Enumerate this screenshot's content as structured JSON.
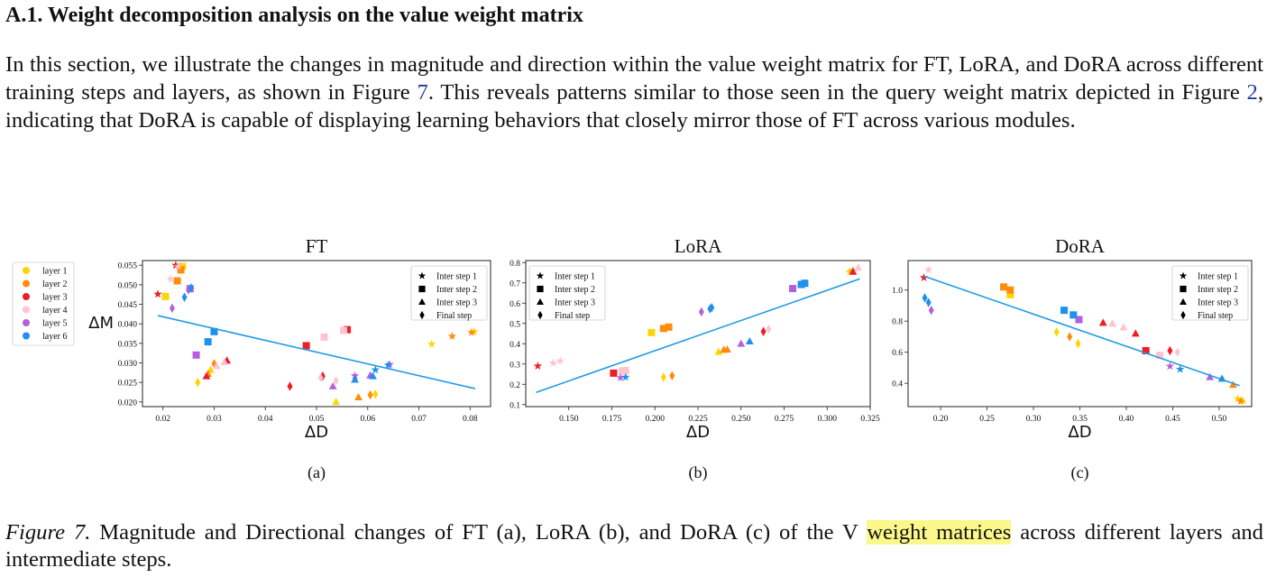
{
  "heading": "A.1. Weight decomposition analysis on the value weight matrix",
  "paragraph": {
    "part1": "In this section, we illustrate the changes in magnitude and direction within the value weight matrix for FT, LoRA, and DoRA across different training steps and layers, as shown in Figure ",
    "ref1": "7",
    "part2": ". This reveals patterns similar to those seen in the query weight matrix depicted in Figure ",
    "ref2": "2",
    "part3": ", indicating that DoRA is capable of displaying learning behaviors that closely mirror those of FT across various modules."
  },
  "figure": {
    "layer_legend": [
      {
        "label": "layer 1",
        "color": "#FFD500"
      },
      {
        "label": "layer 2",
        "color": "#FF8C0A"
      },
      {
        "label": "layer 3",
        "color": "#EE1C25"
      },
      {
        "label": "layer 4",
        "color": "#FFC4CF"
      },
      {
        "label": "layer 5",
        "color": "#B45FDB"
      },
      {
        "label": "layer 6",
        "color": "#1E90EE"
      }
    ],
    "marker_legend": [
      {
        "label": "Inter step 1",
        "marker": "star"
      },
      {
        "label": "Inter step 2",
        "marker": "square"
      },
      {
        "label": "Inter step 3",
        "marker": "triangle"
      },
      {
        "label": "Final step",
        "marker": "diamond"
      }
    ],
    "line_color": "#1E9BE8",
    "ylabel": "ΔM",
    "xlabel": "ΔD",
    "subcaptions": [
      "(a)",
      "(b)",
      "(c)"
    ]
  },
  "chart_data": [
    {
      "type": "scatter",
      "title": "FT",
      "xlabel": "ΔD",
      "ylabel": "ΔM",
      "xlim": [
        0.016,
        0.084
      ],
      "ylim": [
        0.0188,
        0.0562
      ],
      "xticks": [
        0.02,
        0.03,
        0.04,
        0.05,
        0.06,
        0.07,
        0.08
      ],
      "xtick_labels": [
        "0.02",
        "0.03",
        "0.04",
        "0.05",
        "0.06",
        "0.07",
        "0.08"
      ],
      "yticks": [
        0.02,
        0.025,
        0.03,
        0.035,
        0.04,
        0.045,
        0.05,
        0.055
      ],
      "ytick_labels": [
        "0.020",
        "0.025",
        "0.030",
        "0.035",
        "0.040",
        "0.045",
        "0.050",
        "0.055"
      ],
      "legend_position": "top-right",
      "fit_line": [
        [
          0.019,
          0.0421
        ],
        [
          0.081,
          0.0234
        ]
      ],
      "points": [
        {
          "layer": 1,
          "step": "star",
          "x": 0.0725,
          "y": 0.0348
        },
        {
          "layer": 1,
          "step": "square",
          "x": 0.0205,
          "y": 0.047
        },
        {
          "layer": 1,
          "step": "triangle",
          "x": 0.0538,
          "y": 0.02
        },
        {
          "layer": 1,
          "step": "diamond",
          "x": 0.0268,
          "y": 0.025
        },
        {
          "layer": 1,
          "step": "star",
          "x": 0.0808,
          "y": 0.038
        },
        {
          "layer": 1,
          "step": "square",
          "x": 0.0238,
          "y": 0.0547
        },
        {
          "layer": 1,
          "step": "triangle",
          "x": 0.0293,
          "y": 0.0282
        },
        {
          "layer": 1,
          "step": "diamond",
          "x": 0.0615,
          "y": 0.022
        },
        {
          "layer": 2,
          "step": "star",
          "x": 0.0765,
          "y": 0.0368
        },
        {
          "layer": 2,
          "step": "square",
          "x": 0.0228,
          "y": 0.051
        },
        {
          "layer": 2,
          "step": "triangle",
          "x": 0.0582,
          "y": 0.0212
        },
        {
          "layer": 2,
          "step": "diamond",
          "x": 0.03,
          "y": 0.0298
        },
        {
          "layer": 2,
          "step": "star",
          "x": 0.0803,
          "y": 0.0378
        },
        {
          "layer": 2,
          "step": "square",
          "x": 0.0235,
          "y": 0.0538
        },
        {
          "layer": 2,
          "step": "triangle",
          "x": 0.0288,
          "y": 0.0272
        },
        {
          "layer": 2,
          "step": "diamond",
          "x": 0.0605,
          "y": 0.0218
        },
        {
          "layer": 3,
          "step": "star",
          "x": 0.019,
          "y": 0.0476
        },
        {
          "layer": 3,
          "step": "square",
          "x": 0.048,
          "y": 0.0344
        },
        {
          "layer": 3,
          "step": "triangle",
          "x": 0.0285,
          "y": 0.0266
        },
        {
          "layer": 3,
          "step": "diamond",
          "x": 0.0448,
          "y": 0.024
        },
        {
          "layer": 3,
          "step": "star",
          "x": 0.0225,
          "y": 0.055
        },
        {
          "layer": 3,
          "step": "square",
          "x": 0.056,
          "y": 0.0385
        },
        {
          "layer": 3,
          "step": "triangle",
          "x": 0.0325,
          "y": 0.0306
        },
        {
          "layer": 3,
          "step": "diamond",
          "x": 0.0512,
          "y": 0.0266
        },
        {
          "layer": 4,
          "step": "star",
          "x": 0.0215,
          "y": 0.0515
        },
        {
          "layer": 4,
          "step": "square",
          "x": 0.0515,
          "y": 0.0366
        },
        {
          "layer": 4,
          "step": "triangle",
          "x": 0.032,
          "y": 0.0302
        },
        {
          "layer": 4,
          "step": "diamond",
          "x": 0.0538,
          "y": 0.0254
        },
        {
          "layer": 4,
          "step": "star",
          "x": 0.023,
          "y": 0.0547
        },
        {
          "layer": 4,
          "step": "square",
          "x": 0.0553,
          "y": 0.0383
        },
        {
          "layer": 4,
          "step": "triangle",
          "x": 0.0305,
          "y": 0.0292
        },
        {
          "layer": 4,
          "step": "diamond",
          "x": 0.0508,
          "y": 0.0262
        },
        {
          "layer": 5,
          "step": "star",
          "x": 0.0643,
          "y": 0.0296
        },
        {
          "layer": 5,
          "step": "square",
          "x": 0.0265,
          "y": 0.032
        },
        {
          "layer": 5,
          "step": "triangle",
          "x": 0.0605,
          "y": 0.0268
        },
        {
          "layer": 5,
          "step": "diamond",
          "x": 0.0218,
          "y": 0.044
        },
        {
          "layer": 5,
          "step": "star",
          "x": 0.0575,
          "y": 0.0267
        },
        {
          "layer": 5,
          "step": "square",
          "x": 0.0253,
          "y": 0.049
        },
        {
          "layer": 5,
          "step": "triangle",
          "x": 0.0532,
          "y": 0.024
        },
        {
          "layer": 5,
          "step": "diamond",
          "x": 0.025,
          "y": 0.0487
        },
        {
          "layer": 6,
          "step": "star",
          "x": 0.0615,
          "y": 0.0282
        },
        {
          "layer": 6,
          "step": "square",
          "x": 0.0288,
          "y": 0.0354
        },
        {
          "layer": 6,
          "step": "triangle",
          "x": 0.0575,
          "y": 0.0257
        },
        {
          "layer": 6,
          "step": "diamond",
          "x": 0.0242,
          "y": 0.0468
        },
        {
          "layer": 6,
          "step": "star",
          "x": 0.064,
          "y": 0.0294
        },
        {
          "layer": 6,
          "step": "square",
          "x": 0.03,
          "y": 0.038
        },
        {
          "layer": 6,
          "step": "triangle",
          "x": 0.061,
          "y": 0.0266
        },
        {
          "layer": 6,
          "step": "diamond",
          "x": 0.0255,
          "y": 0.0492
        }
      ]
    },
    {
      "type": "scatter",
      "title": "LoRA",
      "xlabel": "ΔD",
      "ylabel": "",
      "xlim": [
        0.125,
        0.325
      ],
      "ylim": [
        0.09,
        0.81
      ],
      "xticks": [
        0.15,
        0.175,
        0.2,
        0.225,
        0.25,
        0.275,
        0.3,
        0.325
      ],
      "xtick_labels": [
        "0.150",
        "0.175",
        "0.200",
        "0.225",
        "0.250",
        "0.275",
        "0.300",
        "0.325"
      ],
      "yticks": [
        0.1,
        0.2,
        0.3,
        0.4,
        0.5,
        0.6,
        0.7,
        0.8
      ],
      "ytick_labels": [
        "0.1",
        "0.2",
        "0.3",
        "0.4",
        "0.5",
        "0.6",
        "0.7",
        "0.8"
      ],
      "legend_position": "top-left",
      "fit_line": [
        [
          0.131,
          0.16
        ],
        [
          0.319,
          0.72
        ]
      ],
      "points": [
        {
          "layer": 1,
          "step": "star",
          "x": 0.313,
          "y": 0.755
        },
        {
          "layer": 1,
          "step": "square",
          "x": 0.198,
          "y": 0.455
        },
        {
          "layer": 1,
          "step": "triangle",
          "x": 0.237,
          "y": 0.36
        },
        {
          "layer": 1,
          "step": "diamond",
          "x": 0.205,
          "y": 0.235
        },
        {
          "layer": 2,
          "step": "star",
          "x": 0.315,
          "y": 0.76
        },
        {
          "layer": 2,
          "step": "square",
          "x": 0.205,
          "y": 0.475
        },
        {
          "layer": 2,
          "step": "triangle",
          "x": 0.242,
          "y": 0.372
        },
        {
          "layer": 2,
          "step": "diamond",
          "x": 0.21,
          "y": 0.242
        },
        {
          "layer": 2,
          "step": "square",
          "x": 0.208,
          "y": 0.482
        },
        {
          "layer": 2,
          "step": "triangle",
          "x": 0.24,
          "y": 0.37
        },
        {
          "layer": 3,
          "step": "star",
          "x": 0.132,
          "y": 0.29
        },
        {
          "layer": 3,
          "step": "square",
          "x": 0.176,
          "y": 0.255
        },
        {
          "layer": 3,
          "step": "triangle",
          "x": 0.315,
          "y": 0.755
        },
        {
          "layer": 3,
          "step": "diamond",
          "x": 0.263,
          "y": 0.46
        },
        {
          "layer": 4,
          "step": "star",
          "x": 0.145,
          "y": 0.315
        },
        {
          "layer": 4,
          "step": "square",
          "x": 0.183,
          "y": 0.268
        },
        {
          "layer": 4,
          "step": "triangle",
          "x": 0.318,
          "y": 0.775
        },
        {
          "layer": 4,
          "step": "diamond",
          "x": 0.266,
          "y": 0.472
        },
        {
          "layer": 4,
          "step": "star",
          "x": 0.141,
          "y": 0.305
        },
        {
          "layer": 4,
          "step": "square",
          "x": 0.181,
          "y": 0.265
        },
        {
          "layer": 5,
          "step": "star",
          "x": 0.18,
          "y": 0.232
        },
        {
          "layer": 5,
          "step": "square",
          "x": 0.28,
          "y": 0.672
        },
        {
          "layer": 5,
          "step": "triangle",
          "x": 0.25,
          "y": 0.4
        },
        {
          "layer": 5,
          "step": "diamond",
          "x": 0.227,
          "y": 0.557
        },
        {
          "layer": 6,
          "step": "star",
          "x": 0.183,
          "y": 0.235
        },
        {
          "layer": 6,
          "step": "square",
          "x": 0.285,
          "y": 0.692
        },
        {
          "layer": 6,
          "step": "triangle",
          "x": 0.255,
          "y": 0.412
        },
        {
          "layer": 6,
          "step": "diamond",
          "x": 0.233,
          "y": 0.578
        },
        {
          "layer": 6,
          "step": "square",
          "x": 0.287,
          "y": 0.698
        },
        {
          "layer": 6,
          "step": "diamond",
          "x": 0.232,
          "y": 0.572
        }
      ]
    },
    {
      "type": "scatter",
      "title": "DoRA",
      "xlabel": "ΔD",
      "ylabel": "",
      "xlim": [
        0.165,
        0.535
      ],
      "ylim": [
        0.25,
        1.19
      ],
      "xticks": [
        0.2,
        0.25,
        0.3,
        0.35,
        0.4,
        0.45,
        0.5
      ],
      "xtick_labels": [
        "0.20",
        "0.25",
        "0.30",
        "0.35",
        "0.40",
        "0.45",
        "0.50"
      ],
      "yticks": [
        0.4,
        0.6,
        0.8,
        1.0
      ],
      "ytick_labels": [
        "0.4",
        "0.6",
        "0.8",
        "1.0"
      ],
      "legend_position": "top-right",
      "fit_line": [
        [
          0.182,
          1.09
        ],
        [
          0.522,
          0.385
        ]
      ],
      "points": [
        {
          "layer": 1,
          "step": "star",
          "x": 0.52,
          "y": 0.3
        },
        {
          "layer": 1,
          "step": "square",
          "x": 0.275,
          "y": 0.97
        },
        {
          "layer": 1,
          "step": "triangle",
          "x": 0.525,
          "y": 0.29
        },
        {
          "layer": 1,
          "step": "diamond",
          "x": 0.325,
          "y": 0.73
        },
        {
          "layer": 1,
          "step": "diamond",
          "x": 0.348,
          "y": 0.655
        },
        {
          "layer": 2,
          "step": "star",
          "x": 0.523,
          "y": 0.285
        },
        {
          "layer": 2,
          "step": "square",
          "x": 0.268,
          "y": 1.02
        },
        {
          "layer": 2,
          "step": "triangle",
          "x": 0.515,
          "y": 0.39
        },
        {
          "layer": 2,
          "step": "diamond",
          "x": 0.339,
          "y": 0.7
        },
        {
          "layer": 2,
          "step": "square",
          "x": 0.275,
          "y": 1.0
        },
        {
          "layer": 3,
          "step": "star",
          "x": 0.182,
          "y": 1.08
        },
        {
          "layer": 3,
          "step": "square",
          "x": 0.421,
          "y": 0.61
        },
        {
          "layer": 3,
          "step": "triangle",
          "x": 0.375,
          "y": 0.79
        },
        {
          "layer": 3,
          "step": "diamond",
          "x": 0.447,
          "y": 0.61
        },
        {
          "layer": 3,
          "step": "triangle",
          "x": 0.41,
          "y": 0.72
        },
        {
          "layer": 4,
          "step": "star",
          "x": 0.187,
          "y": 1.13
        },
        {
          "layer": 4,
          "step": "square",
          "x": 0.436,
          "y": 0.58
        },
        {
          "layer": 4,
          "step": "triangle",
          "x": 0.385,
          "y": 0.785
        },
        {
          "layer": 4,
          "step": "diamond",
          "x": 0.455,
          "y": 0.6
        },
        {
          "layer": 4,
          "step": "triangle",
          "x": 0.397,
          "y": 0.76
        },
        {
          "layer": 5,
          "step": "star",
          "x": 0.447,
          "y": 0.51
        },
        {
          "layer": 5,
          "step": "square",
          "x": 0.349,
          "y": 0.81
        },
        {
          "layer": 5,
          "step": "triangle",
          "x": 0.49,
          "y": 0.44
        },
        {
          "layer": 5,
          "step": "diamond",
          "x": 0.19,
          "y": 0.87
        },
        {
          "layer": 6,
          "step": "star",
          "x": 0.458,
          "y": 0.49
        },
        {
          "layer": 6,
          "step": "square",
          "x": 0.333,
          "y": 0.87
        },
        {
          "layer": 6,
          "step": "triangle",
          "x": 0.503,
          "y": 0.43
        },
        {
          "layer": 6,
          "step": "diamond",
          "x": 0.183,
          "y": 0.95
        },
        {
          "layer": 6,
          "step": "square",
          "x": 0.343,
          "y": 0.84
        },
        {
          "layer": 6,
          "step": "diamond",
          "x": 0.187,
          "y": 0.92
        }
      ]
    }
  ],
  "caption": {
    "label": "Figure 7.",
    "text_before": " Magnitude and Directional changes of FT (a), LoRA (b), and DoRA (c) of the V ",
    "highlight": "weight matrices",
    "text_after": " across different layers and intermediate steps."
  }
}
